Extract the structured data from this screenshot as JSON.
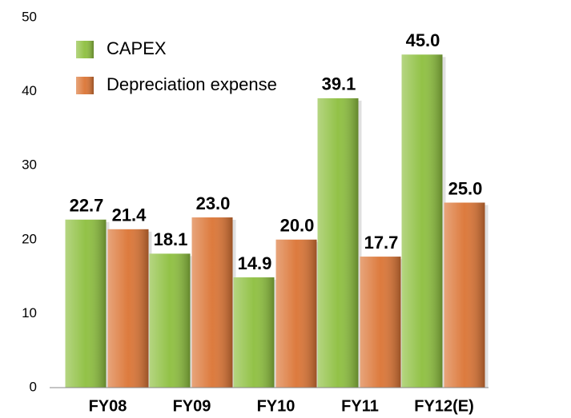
{
  "chart_data": {
    "type": "bar",
    "categories": [
      "FY08",
      "FY09",
      "FY10",
      "FY11",
      "FY12(E)"
    ],
    "series": [
      {
        "name": "CAPEX",
        "color": "#8dbf3e",
        "values": [
          22.7,
          18.1,
          14.9,
          39.1,
          45.0
        ],
        "value_labels": [
          "22.7",
          "18.1",
          "14.9",
          "39.1",
          "45.0"
        ]
      },
      {
        "name": "Depreciation expense",
        "color": "#db7434",
        "values": [
          21.4,
          23.0,
          20.0,
          17.7,
          25.0
        ],
        "value_labels": [
          "21.4",
          "23.0",
          "20.0",
          "17.7",
          "25.0"
        ]
      }
    ],
    "ylim": [
      0,
      50
    ],
    "yticks": [
      0,
      10,
      20,
      30,
      40,
      50
    ],
    "grid": false,
    "legend": "upper left"
  }
}
